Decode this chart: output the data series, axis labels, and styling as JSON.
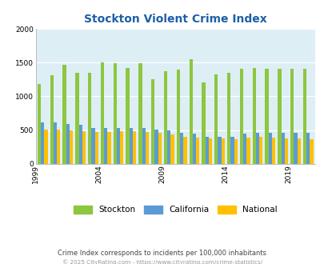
{
  "title": "Stockton Violent Crime Index",
  "years": [
    1999,
    2000,
    2001,
    2002,
    2003,
    2004,
    2005,
    2006,
    2007,
    2008,
    2009,
    2010,
    2011,
    2012,
    2013,
    2014,
    2015,
    2016,
    2017,
    2018,
    2019,
    2020
  ],
  "stockton": [
    1180,
    1315,
    1470,
    1350,
    1345,
    1500,
    1490,
    1420,
    1490,
    1255,
    1375,
    1400,
    1550,
    1210,
    1330,
    1350,
    1415,
    1420,
    1415,
    1415,
    1415,
    1415
  ],
  "california": [
    615,
    615,
    585,
    575,
    530,
    530,
    530,
    530,
    530,
    505,
    490,
    455,
    445,
    400,
    405,
    395,
    445,
    460,
    460,
    460,
    455,
    455
  ],
  "national": [
    505,
    505,
    495,
    480,
    465,
    465,
    480,
    480,
    470,
    455,
    430,
    405,
    390,
    380,
    370,
    365,
    390,
    395,
    390,
    375,
    370,
    360
  ],
  "stockton_color": "#8dc63f",
  "california_color": "#5b9bd5",
  "national_color": "#ffc000",
  "background_color": "#ddeef5",
  "ylim": [
    0,
    2000
  ],
  "yticks": [
    0,
    500,
    1000,
    1500,
    2000
  ],
  "xtick_years": [
    1999,
    2004,
    2009,
    2014,
    2019
  ],
  "footnote1": "Crime Index corresponds to incidents per 100,000 inhabitants",
  "footnote2": "© 2025 CityRating.com - https://www.cityrating.com/crime-statistics/",
  "title_color": "#1f5fa6",
  "footnote1_color": "#444444",
  "footnote2_color": "#999999",
  "bar_width": 0.27,
  "figsize": [
    4.06,
    3.3
  ],
  "dpi": 100
}
